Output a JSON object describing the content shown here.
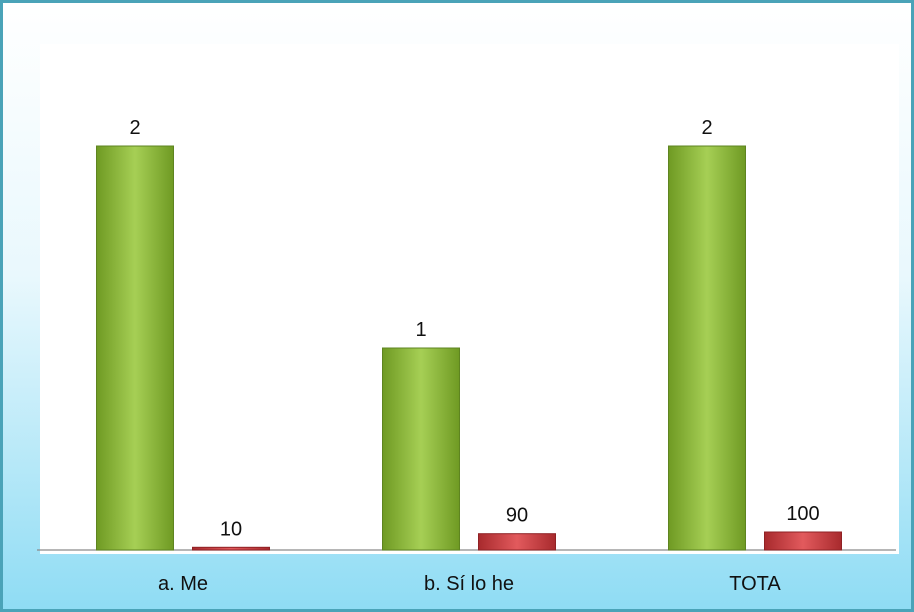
{
  "chart_data": {
    "type": "bar",
    "categories": [
      "a. Me",
      "b. Sí lo he",
      "TOTA"
    ],
    "series": [
      {
        "values": [
          2,
          1,
          2
        ],
        "data_labels": [
          "2",
          "1",
          "2"
        ],
        "color": "#8db83a"
      },
      {
        "values": [
          10,
          90,
          100
        ],
        "data_labels": [
          "10",
          "90",
          "100"
        ],
        "color": "#c8383b"
      }
    ],
    "colors": {
      "frame_border": "#4aa3b8",
      "axis": "#8a8a8a"
    }
  }
}
